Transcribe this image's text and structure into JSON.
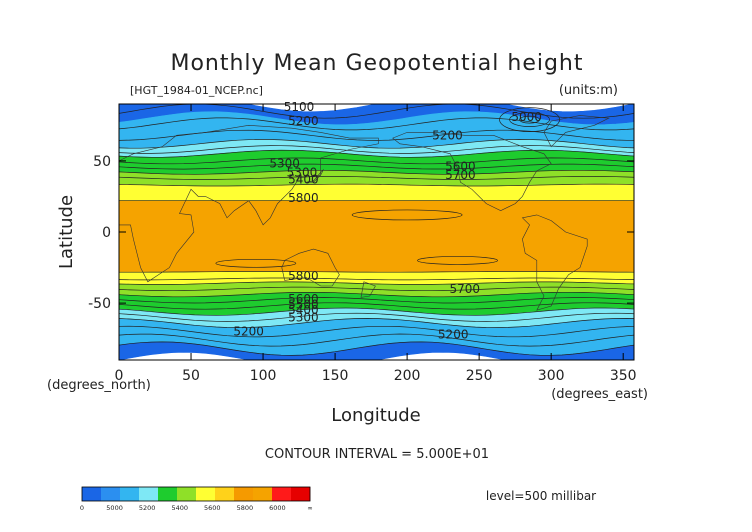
{
  "chart_data": {
    "type": "contour",
    "title": "Monthly Mean Geopotential height",
    "source_label": "[HGT_1984-01_NCEP.nc]",
    "units_label": "(units:m)",
    "xlabel": "Longitude",
    "ylabel": "Latitude",
    "x_unit_label": "(degrees_east)",
    "y_unit_label": "(degrees_north)",
    "xlim": [
      0,
      357.5
    ],
    "ylim": [
      -90,
      90
    ],
    "xticks": [
      0,
      50,
      100,
      150,
      200,
      250,
      300,
      350
    ],
    "yticks": [
      -50,
      0,
      50
    ],
    "contour_interval_label": "CONTOUR INTERVAL = 5.000E+01",
    "level_label": "level=500 millibar",
    "contour_labels": [
      {
        "text": "5100",
        "lon": 125,
        "lat": 88
      },
      {
        "text": "5200",
        "lon": 128,
        "lat": 78
      },
      {
        "text": "5200",
        "lon": 228,
        "lat": 68
      },
      {
        "text": "5000",
        "lon": 283,
        "lat": 81
      },
      {
        "text": "5300",
        "lon": 115,
        "lat": 48
      },
      {
        "text": "5300",
        "lon": 127,
        "lat": 42
      },
      {
        "text": "5400",
        "lon": 128,
        "lat": 37
      },
      {
        "text": "5600",
        "lon": 237,
        "lat": 46
      },
      {
        "text": "5700",
        "lon": 237,
        "lat": 40
      },
      {
        "text": "5800",
        "lon": 128,
        "lat": 24
      },
      {
        "text": "5800",
        "lon": 128,
        "lat": -31
      },
      {
        "text": "5700",
        "lon": 240,
        "lat": -40
      },
      {
        "text": "5600",
        "lon": 128,
        "lat": -47
      },
      {
        "text": "5500",
        "lon": 128,
        "lat": -51
      },
      {
        "text": "5400",
        "lon": 128,
        "lat": -55
      },
      {
        "text": "5300",
        "lon": 128,
        "lat": -60
      },
      {
        "text": "5200",
        "lon": 90,
        "lat": -70
      },
      {
        "text": "5200",
        "lon": 232,
        "lat": -72
      }
    ],
    "colorbar": {
      "ticks": [
        "0",
        "5000",
        "5200",
        "5400",
        "5600",
        "5800",
        "6000",
        "∞"
      ],
      "colors": [
        "#1a66e6",
        "#2b8ff0",
        "#33b5f0",
        "#7ee8f5",
        "#1ecc2e",
        "#8fe028",
        "#ffff33",
        "#ffd21a",
        "#f59a00",
        "#f5a300",
        "#ff1a1a",
        "#e60000"
      ]
    },
    "bands": [
      {
        "lat": [
          80,
          90
        ],
        "color": "#1a66e6"
      },
      {
        "lat": [
          62,
          80
        ],
        "color": "#33b5f0"
      },
      {
        "lat": [
          55,
          62
        ],
        "color": "#7ee8f5"
      },
      {
        "lat": [
          42,
          55
        ],
        "color": "#1ecc2e"
      },
      {
        "lat": [
          33,
          42
        ],
        "color": "#8fe028"
      },
      {
        "lat": [
          22,
          33
        ],
        "color": "#ffff33"
      },
      {
        "lat": [
          -28,
          22
        ],
        "color": "#f5a300"
      },
      {
        "lat": [
          -36,
          -28
        ],
        "color": "#ffff33"
      },
      {
        "lat": [
          -44,
          -36
        ],
        "color": "#8fe028"
      },
      {
        "lat": [
          -56,
          -44
        ],
        "color": "#1ecc2e"
      },
      {
        "lat": [
          -64,
          -56
        ],
        "color": "#7ee8f5"
      },
      {
        "lat": [
          -82,
          -64
        ],
        "color": "#33b5f0"
      },
      {
        "lat": [
          -90,
          -82
        ],
        "color": "#1a66e6"
      }
    ]
  }
}
